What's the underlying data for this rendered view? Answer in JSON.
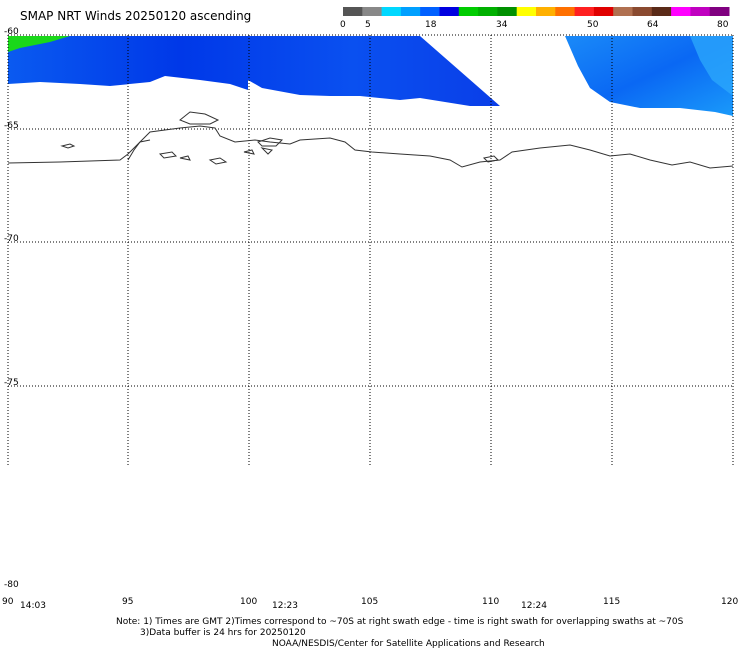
{
  "title": "SMAP NRT Winds 20250120 ascending",
  "colorbar": {
    "labels": [
      "0",
      "5",
      "18",
      "34",
      "50",
      "64",
      "80"
    ],
    "segments": [
      {
        "color": "#555555"
      },
      {
        "color": "#888888"
      },
      {
        "color": "#00d8ff"
      },
      {
        "color": "#00a0ff"
      },
      {
        "color": "#0060ff"
      },
      {
        "color": "#0000e0"
      },
      {
        "color": "#00cc00"
      },
      {
        "color": "#00b000"
      },
      {
        "color": "#009000"
      },
      {
        "color": "#ffff00"
      },
      {
        "color": "#ffb000"
      },
      {
        "color": "#ff7000"
      },
      {
        "color": "#ff2020"
      },
      {
        "color": "#e00000"
      },
      {
        "color": "#b07050"
      },
      {
        "color": "#8a4a30"
      },
      {
        "color": "#5a2a18"
      },
      {
        "color": "#ff00ff"
      },
      {
        "color": "#c000c0"
      },
      {
        "color": "#800080"
      }
    ]
  },
  "latitude_labels": [
    "-60",
    "-65",
    "-70",
    "-75",
    "-80"
  ],
  "longitude_labels": [
    "90",
    "95",
    "100",
    "105",
    "110",
    "115",
    "120"
  ],
  "time_labels": [
    "14:03",
    "12:23",
    "12:24"
  ],
  "notes": {
    "line1": "Note: 1) Times are GMT 2)Times correspond to ~70S at right swath edge - time is right swath for overlapping swaths at ~70S",
    "line2": "3)Data buffer is 24 hrs for 20250120",
    "line3": "NOAA/NESDIS/Center for Satellite Applications and Research"
  }
}
